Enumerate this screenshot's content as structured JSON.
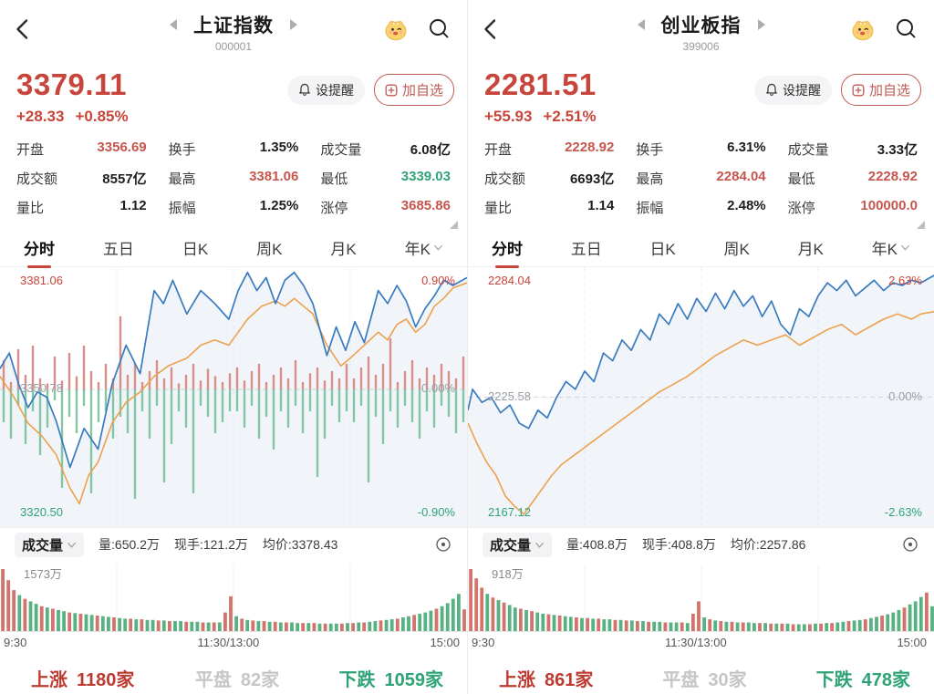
{
  "colors": {
    "up_red": "#c8453b",
    "down_green": "#2fa377",
    "flat_gray": "#c6c6c6",
    "price_line_blue": "#3a7bbf",
    "avg_line_orange": "#eda14e",
    "mid_bar_red": "#d98f88",
    "mid_bar_green": "#83c5a4",
    "vol_bar_red": "#d2736c",
    "vol_bar_green": "#57b182"
  },
  "panels": [
    {
      "header": {
        "title": "上证指数",
        "code": "000001"
      },
      "price": {
        "value": "3379.11",
        "change": "+28.33",
        "change_pct": "+0.85%"
      },
      "buttons": {
        "alert": "设提醒",
        "add": "加自选"
      },
      "stats": [
        {
          "label": "开盘",
          "value": "3356.69",
          "color": "red"
        },
        {
          "label": "换手",
          "value": "1.35%",
          "color": "dark"
        },
        {
          "label": "成交量",
          "value": "6.08亿",
          "color": "dark"
        },
        {
          "label": "成交额",
          "value": "8557亿",
          "color": "dark"
        },
        {
          "label": "最高",
          "value": "3381.06",
          "color": "red"
        },
        {
          "label": "最低",
          "value": "3339.03",
          "color": "green"
        },
        {
          "label": "量比",
          "value": "1.12",
          "color": "dark"
        },
        {
          "label": "振幅",
          "value": "1.25%",
          "color": "dark"
        },
        {
          "label": "涨停",
          "value": "3685.86",
          "color": "red"
        }
      ],
      "tabs": [
        "分时",
        "五日",
        "日K",
        "周K",
        "月K",
        "年K"
      ],
      "active_tab": 0,
      "chart": {
        "type": "line",
        "high_label": "3381.06",
        "high_pct": "0.90%",
        "mid_label": "3350.78",
        "mid_pct": "0.00%",
        "low_label": "3320.50",
        "low_pct": "-0.90%",
        "mid_ratio": 0.47,
        "price_line": [
          0,
          39,
          2,
          33,
          4,
          45,
          6,
          54,
          8,
          48,
          10,
          50,
          12,
          59,
          15,
          77,
          18,
          62,
          21,
          70,
          24,
          45,
          27,
          30,
          30,
          41,
          33,
          9,
          35,
          14,
          37,
          5,
          40,
          18,
          43,
          9,
          46,
          14,
          49,
          20,
          51,
          9,
          53,
          2,
          55,
          9,
          57,
          4,
          59,
          14,
          61,
          5,
          63,
          2,
          65,
          7,
          67,
          14,
          70,
          34,
          72,
          23,
          74,
          32,
          76,
          21,
          78,
          29,
          81,
          9,
          83,
          14,
          85,
          7,
          87,
          13,
          89,
          23,
          91,
          16,
          93,
          11,
          95,
          5,
          97,
          7,
          100,
          4
        ],
        "avg_line": [
          0,
          42,
          3,
          50,
          6,
          60,
          9,
          65,
          12,
          72,
          15,
          85,
          17,
          91,
          19,
          80,
          21,
          75,
          24,
          60,
          27,
          52,
          30,
          48,
          33,
          42,
          36,
          38,
          40,
          35,
          43,
          30,
          46,
          28,
          49,
          30,
          51,
          25,
          53,
          20,
          56,
          15,
          59,
          13,
          61,
          15,
          63,
          12,
          65,
          15,
          67,
          18,
          70,
          30,
          73,
          38,
          75,
          35,
          78,
          30,
          81,
          25,
          83,
          28,
          85,
          22,
          87,
          20,
          89,
          25,
          91,
          22,
          93,
          15,
          95,
          12,
          97,
          8,
          100,
          6
        ],
        "bars_up": [
          40,
          10,
          55,
          20,
          60,
          15,
          8,
          45,
          12,
          50,
          18,
          60,
          25,
          10,
          35,
          15,
          100,
          20,
          35,
          10,
          25,
          40,
          15,
          30,
          8,
          20,
          35,
          12,
          28,
          18,
          10,
          22,
          30,
          12,
          25,
          35,
          10,
          20,
          30,
          15,
          40,
          10,
          22,
          30,
          12,
          25,
          15,
          35,
          15,
          30,
          45,
          20,
          35,
          70,
          10,
          25,
          40,
          15,
          30,
          20,
          35,
          25,
          15,
          45
        ],
        "bars_down": [
          30,
          45,
          15,
          50,
          20,
          60,
          35,
          10,
          90,
          25,
          40,
          15,
          95,
          30,
          20,
          45,
          25,
          40,
          100,
          20,
          45,
          15,
          85,
          50,
          20,
          35,
          95,
          15,
          25,
          40,
          30,
          20,
          20,
          35,
          15,
          45,
          25,
          55,
          20,
          35,
          15,
          40,
          20,
          80,
          45,
          15,
          30,
          20,
          30,
          15,
          85,
          25,
          50,
          20,
          35,
          15,
          30,
          45,
          20,
          35,
          15,
          25,
          40,
          30
        ]
      },
      "volume_row": {
        "title": "成交量",
        "vol": "量:650.2万",
        "lots": "现手:121.2万",
        "avg": "均价:3378.43"
      },
      "volume_chart": {
        "max_label": "1573万",
        "x_labels": [
          "9:30",
          "11:30/13:00",
          "15:00"
        ],
        "bars": [
          "r100",
          "r82",
          "r66",
          "g58",
          "r52",
          "g48",
          "g44",
          "r40",
          "g38",
          "r36",
          "g34",
          "g32",
          "r30",
          "g29",
          "r28",
          "g27",
          "g26",
          "r25",
          "g24",
          "g23",
          "r22",
          "g21",
          "g20",
          "r20",
          "g19",
          "r19",
          "g18",
          "g18",
          "r17",
          "g17",
          "r16",
          "g16",
          "g16",
          "r15",
          "g15",
          "g15",
          "r14",
          "g14",
          "r14",
          "g14",
          "r30",
          "r56",
          "g24",
          "r20",
          "g18",
          "r17",
          "g16",
          "r16",
          "g15",
          "r15",
          "g14",
          "r14",
          "g14",
          "g13",
          "r13",
          "g13",
          "r13",
          "g12",
          "r12",
          "g12",
          "g12",
          "r12",
          "g13",
          "r13",
          "g14",
          "r14",
          "g15",
          "g16",
          "r17",
          "g18",
          "g19",
          "r20",
          "g22",
          "g24",
          "r26",
          "g28",
          "g30",
          "g33",
          "r36",
          "g40",
          "g45",
          "g52",
          "g60",
          "r35"
        ]
      },
      "footer": [
        {
          "label": "上涨",
          "value": "1180家",
          "color": "red"
        },
        {
          "label": "平盘",
          "value": "82家",
          "color": "gray"
        },
        {
          "label": "下跌",
          "value": "1059家",
          "color": "green"
        }
      ]
    },
    {
      "header": {
        "title": "创业板指",
        "code": "399006"
      },
      "price": {
        "value": "2281.51",
        "change": "+55.93",
        "change_pct": "+2.51%"
      },
      "buttons": {
        "alert": "设提醒",
        "add": "加自选"
      },
      "stats": [
        {
          "label": "开盘",
          "value": "2228.92",
          "color": "red"
        },
        {
          "label": "换手",
          "value": "6.31%",
          "color": "dark"
        },
        {
          "label": "成交量",
          "value": "3.33亿",
          "color": "dark"
        },
        {
          "label": "成交额",
          "value": "6693亿",
          "color": "dark"
        },
        {
          "label": "最高",
          "value": "2284.04",
          "color": "red"
        },
        {
          "label": "最低",
          "value": "2228.92",
          "color": "red"
        },
        {
          "label": "量比",
          "value": "1.14",
          "color": "dark"
        },
        {
          "label": "振幅",
          "value": "2.48%",
          "color": "dark"
        },
        {
          "label": "涨停",
          "value": "100000.0",
          "color": "red"
        }
      ],
      "tabs": [
        "分时",
        "五日",
        "日K",
        "周K",
        "月K",
        "年K"
      ],
      "active_tab": 0,
      "chart": {
        "type": "line",
        "high_label": "2284.04",
        "high_pct": "2.63%",
        "mid_label": "2225.58",
        "mid_pct": "0.00%",
        "low_label": "2167.12",
        "low_pct": "-2.63%",
        "mid_ratio": 0.5,
        "price_line": [
          0,
          55,
          1,
          47,
          3,
          52,
          5,
          50,
          7,
          56,
          9,
          53,
          11,
          60,
          13,
          62,
          15,
          55,
          17,
          58,
          19,
          50,
          21,
          44,
          23,
          47,
          25,
          40,
          27,
          44,
          29,
          33,
          31,
          36,
          33,
          28,
          35,
          32,
          37,
          24,
          39,
          28,
          41,
          18,
          43,
          22,
          45,
          14,
          47,
          20,
          49,
          12,
          51,
          17,
          53,
          10,
          55,
          16,
          57,
          9,
          59,
          15,
          61,
          11,
          63,
          19,
          65,
          13,
          67,
          22,
          69,
          26,
          71,
          16,
          73,
          19,
          75,
          11,
          77,
          6,
          79,
          9,
          81,
          5,
          83,
          11,
          85,
          8,
          87,
          5,
          89,
          9,
          91,
          6,
          93,
          7,
          95,
          5,
          97,
          6,
          100,
          3
        ],
        "avg_line": [
          0,
          60,
          2,
          68,
          4,
          75,
          6,
          80,
          8,
          88,
          10,
          92,
          12,
          95,
          14,
          90,
          16,
          85,
          18,
          80,
          20,
          76,
          23,
          72,
          26,
          68,
          29,
          64,
          32,
          60,
          35,
          56,
          38,
          52,
          41,
          48,
          44,
          45,
          47,
          42,
          50,
          38,
          53,
          34,
          56,
          31,
          59,
          28,
          62,
          30,
          65,
          28,
          68,
          26,
          71,
          30,
          74,
          27,
          77,
          24,
          80,
          22,
          83,
          26,
          86,
          23,
          89,
          20,
          92,
          18,
          95,
          20,
          97,
          18,
          100,
          17
        ],
        "bars_up": [],
        "bars_down": []
      },
      "volume_row": {
        "title": "成交量",
        "vol": "量:408.8万",
        "lots": "现手:408.8万",
        "avg": "均价:2257.86"
      },
      "volume_chart": {
        "max_label": "918万",
        "x_labels": [
          "9:30",
          "11:30/13:00",
          "15:00"
        ],
        "bars": [
          "r100",
          "r85",
          "r70",
          "g60",
          "r54",
          "g50",
          "r46",
          "g42",
          "g38",
          "r36",
          "g34",
          "r32",
          "g30",
          "g28",
          "r27",
          "g26",
          "r25",
          "g24",
          "g23",
          "r22",
          "g21",
          "r21",
          "g20",
          "r20",
          "g19",
          "g19",
          "r18",
          "g18",
          "r17",
          "g17",
          "r16",
          "g16",
          "r15",
          "g15",
          "g15",
          "r14",
          "g14",
          "g14",
          "r14",
          "g13",
          "r28",
          "r48",
          "g22",
          "r19",
          "g17",
          "r16",
          "g15",
          "r15",
          "g14",
          "r14",
          "g14",
          "g13",
          "r13",
          "g13",
          "r12",
          "g12",
          "r12",
          "g12",
          "r11",
          "g11",
          "g11",
          "r11",
          "g12",
          "r12",
          "g13",
          "r13",
          "g14",
          "g15",
          "r16",
          "g17",
          "g18",
          "r19",
          "g21",
          "g23",
          "r25",
          "g27",
          "g30",
          "g34",
          "r38",
          "g43",
          "g48",
          "g55",
          "r62",
          "g40"
        ]
      },
      "footer": [
        {
          "label": "上涨",
          "value": "861家",
          "color": "red"
        },
        {
          "label": "平盘",
          "value": "30家",
          "color": "gray"
        },
        {
          "label": "下跌",
          "value": "478家",
          "color": "green"
        }
      ]
    }
  ]
}
